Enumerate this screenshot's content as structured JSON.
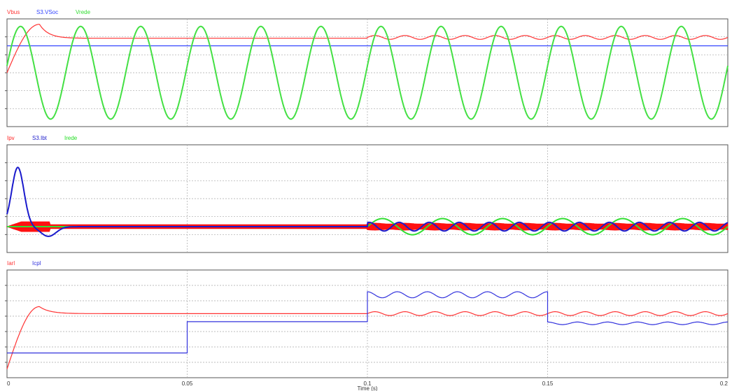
{
  "chart_data": [
    {
      "type": "line",
      "title": "",
      "xlim": [
        0,
        0.2
      ],
      "grid": true,
      "legend_position": "top-left",
      "series": [
        {
          "name": "Vbus",
          "color": "#ff3333",
          "signal": "bus voltage: rises from ~0.7 to peak ~1.0 at t≈0.009 s, settles ~0.92; after t=0.1 s ripples ±0.02 at twice grid frequency"
        },
        {
          "name": "S3.VSoc",
          "color": "#3344ff",
          "signal": "constant ~0.8 of range"
        },
        {
          "name": "Vrede",
          "color": "#33dd33",
          "signal": "grid voltage sinusoid, 60 Hz, full amplitude"
        }
      ]
    },
    {
      "type": "line",
      "title": "",
      "xlim": [
        0,
        0.2
      ],
      "grid": true,
      "legend_position": "top-left",
      "series": [
        {
          "name": "Ipv",
          "color": "#ff2222",
          "signal": "PV current: near baseline with high-frequency switching ripple; ripple band widens after t=0.1 s"
        },
        {
          "name": "S3.Ibt",
          "color": "#2222cc",
          "signal": "battery current: transient peak at t≈0.003 s, dip at t≈0.011 s, settles at baseline; 120 Hz ripple after t=0.1 s"
        },
        {
          "name": "Irede",
          "color": "#22dd22",
          "signal": "grid current: zero before t=0.1 s, 60 Hz sinusoid after"
        }
      ]
    },
    {
      "type": "line",
      "title": "",
      "xlim": [
        0,
        0.2
      ],
      "xticks": [
        "0",
        "0.05",
        "0.1",
        "0.15",
        "0.2"
      ],
      "xlabel": "Time (s)",
      "grid": true,
      "legend_position": "top-left",
      "series": [
        {
          "name": "Iarl",
          "color": "#ff3333",
          "signal": "rises to peak at t≈0.009 s then settles; small 120 Hz ripple after t=0.1 s"
        },
        {
          "name": "Icpl",
          "color": "#3333dd",
          "signal": "load current steps: low 0–0.05 s, mid 0.05–0.1 s, high 0.1–0.15 s (rippled), mid-low 0.15–0.2 s (rippled)"
        }
      ]
    }
  ]
}
